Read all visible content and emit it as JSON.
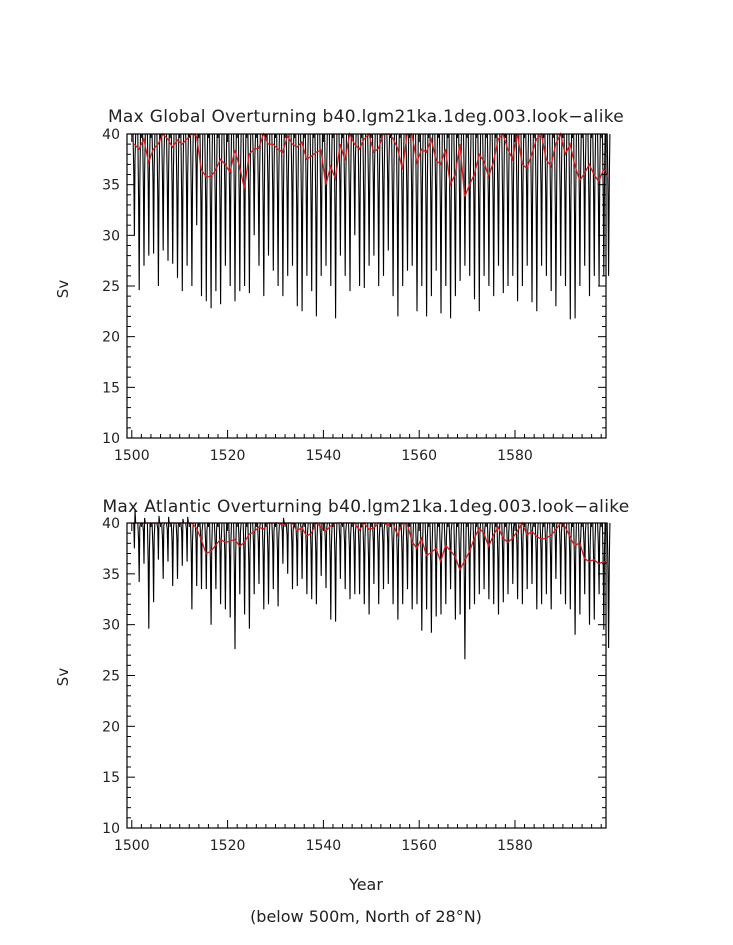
{
  "figure": {
    "xlabel": "Year",
    "footnote": "(below 500m, North of 28°N)"
  },
  "chart_data": [
    {
      "type": "line",
      "title": "Max Global Overturning b40.lgm21ka.1deg.003.look−alike",
      "xlabel": "",
      "ylabel": "Sv",
      "xlim": [
        1499,
        1599
      ],
      "ylim": [
        10,
        40
      ],
      "x_ticks": [
        1500,
        1520,
        1540,
        1560,
        1580
      ],
      "x_tick_labels": [
        "1500",
        "1520",
        "1540",
        "1560",
        "1580"
      ],
      "y_ticks": [
        10,
        15,
        20,
        25,
        30,
        35,
        40
      ],
      "y_tick_labels": [
        "10",
        "15",
        "20",
        "25",
        "30",
        "35",
        "40"
      ],
      "grid": false,
      "series": [
        {
          "style": "monthly",
          "color": "#000000",
          "x_start": 1500,
          "x_end": 1599,
          "note_seasonal_range": [
            22,
            40
          ],
          "annual_minima": [
            30,
            24.6,
            27,
            28,
            28.2,
            25,
            28.5,
            27.5,
            27.2,
            25.8,
            24.5,
            27,
            25,
            31,
            24,
            23.5,
            22.8,
            24.5,
            23.2,
            27,
            25,
            23.5,
            24.5,
            25,
            24.3,
            30,
            27,
            24,
            28,
            26.5,
            25,
            24,
            26,
            27,
            23,
            22.5,
            26,
            24.5,
            22,
            26,
            27,
            25,
            21.8,
            28,
            26,
            24.5,
            30,
            25,
            24.8,
            27,
            28,
            25,
            26,
            28.5,
            24,
            22,
            25,
            26.5,
            27,
            22.5,
            25,
            22,
            24,
            26.5,
            22.3,
            25,
            21.8,
            24,
            25.5,
            27,
            26,
            23.7,
            22.5,
            26,
            25,
            24,
            27,
            24.3,
            25,
            26,
            23.5,
            25,
            27,
            23.4,
            22.5,
            27,
            26,
            24.5,
            23,
            26,
            25,
            21.7,
            21.8,
            25,
            27,
            24,
            26,
            25,
            26,
            26
          ]
        },
        {
          "style": "annual_mean",
          "color": "#d22020",
          "x_start": 1500,
          "values": [
            39,
            38.5,
            39.5,
            37.2,
            38.5,
            39,
            40,
            39.5,
            38.7,
            39.4,
            39,
            39.5,
            40,
            39.8,
            36.5,
            35.8,
            35.8,
            36.4,
            37.5,
            37,
            36.2,
            38.4,
            36.8,
            34.6,
            38,
            38.5,
            38.6,
            40,
            39,
            39,
            38.5,
            38.2,
            39.8,
            39,
            38.7,
            39.2,
            37.5,
            37.8,
            38.2,
            38.4,
            35,
            36.8,
            35.6,
            39,
            37.4,
            40,
            39,
            38.5,
            39.5,
            40,
            38.2,
            38.6,
            40,
            40,
            39.6,
            38.6,
            36.5,
            40,
            40,
            37.2,
            38.5,
            38.2,
            39.5,
            37.4,
            37,
            38.5,
            35,
            36,
            39,
            33.8,
            35,
            36,
            38,
            37.3,
            35.8,
            37.2,
            39.5,
            40,
            38.5,
            37.5,
            40,
            37,
            36.6,
            38,
            39.5,
            40,
            37.5,
            36.8,
            39,
            40,
            38,
            39,
            36.9,
            35.4,
            36.1,
            37,
            36,
            35.3,
            36.5,
            35.8
          ]
        }
      ]
    },
    {
      "type": "line",
      "title": "Max Atlantic Overturning b40.lgm21ka.1deg.003.look−alike",
      "xlabel": "",
      "ylabel": "Sv",
      "xlim": [
        1499,
        1599
      ],
      "ylim": [
        10,
        40
      ],
      "x_ticks": [
        1500,
        1520,
        1540,
        1560,
        1580
      ],
      "x_tick_labels": [
        "1500",
        "1520",
        "1540",
        "1560",
        "1580"
      ],
      "y_ticks": [
        10,
        15,
        20,
        25,
        30,
        35,
        40
      ],
      "y_tick_labels": [
        "10",
        "15",
        "20",
        "25",
        "30",
        "35",
        "40"
      ],
      "grid": false,
      "series": [
        {
          "style": "monthly",
          "color": "#000000",
          "x_start": 1500,
          "x_end": 1599,
          "note_seasonal_range": [
            26.5,
            40
          ],
          "annual_minima": [
            37.5,
            34.2,
            36,
            29.6,
            32.2,
            36.4,
            34.5,
            36.2,
            33.8,
            34.5,
            35.8,
            36.2,
            31.5,
            33.8,
            33.5,
            33.5,
            30,
            33.5,
            32,
            31.5,
            30.7,
            27.6,
            33,
            31,
            29.6,
            33,
            34,
            31.5,
            32,
            33.5,
            31.8,
            36,
            35,
            33.5,
            33.8,
            34.5,
            33,
            32.5,
            32,
            34.8,
            33.6,
            30.5,
            30.3,
            34.5,
            33.5,
            32.5,
            33,
            33,
            32,
            31,
            34,
            32,
            33.5,
            34,
            32,
            30.5,
            32,
            33.5,
            31.5,
            32,
            29.4,
            31.5,
            29.2,
            30.8,
            31,
            32,
            33.5,
            30.5,
            31,
            26.6,
            31.5,
            32,
            33,
            33.5,
            32.5,
            32,
            31,
            32.2,
            33,
            34,
            32.5,
            32,
            33.5,
            34,
            31.5,
            32,
            33,
            31.5,
            34.5,
            33,
            32,
            31.5,
            29,
            31,
            33,
            30,
            30.5,
            33,
            29.5,
            27.7
          ]
        },
        {
          "style": "annual_mean",
          "color": "#d22020",
          "x_start": 1500,
          "values": [
            40,
            40,
            40,
            40,
            40,
            40,
            40,
            40,
            40,
            40,
            40,
            40,
            40,
            39.5,
            38.4,
            37,
            37.2,
            37.8,
            38.4,
            38.1,
            38.2,
            38.4,
            37.7,
            38.1,
            38.9,
            39.1,
            39.6,
            39.4,
            40,
            40,
            40,
            39.8,
            40,
            40,
            39.2,
            39.6,
            38.7,
            39,
            40,
            39.6,
            39.2,
            39.7,
            40,
            40,
            40,
            40,
            40,
            39.3,
            40,
            39.4,
            39.5,
            40,
            40,
            39.8,
            40,
            38.8,
            40,
            39.9,
            38.2,
            37.5,
            38.5,
            36.8,
            37.1,
            37.5,
            36.2,
            37.8,
            37.3,
            36.7,
            35.4,
            36.3,
            37.2,
            38.5,
            39.5,
            39,
            37.7,
            38.8,
            39.6,
            38.5,
            38.1,
            38.5,
            39.2,
            40,
            38.8,
            39.2,
            38.7,
            38.4,
            38.5,
            38.8,
            39.3,
            40,
            39.6,
            38.6,
            37.7,
            38.1,
            36.5,
            36.2,
            36.4,
            36,
            36.2,
            36
          ]
        }
      ]
    }
  ]
}
